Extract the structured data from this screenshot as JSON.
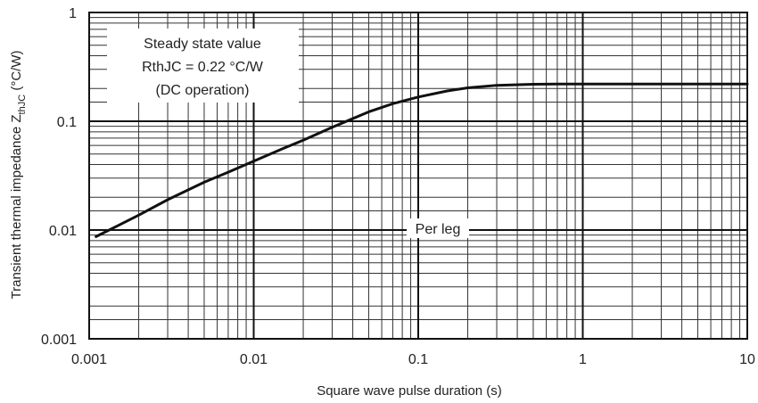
{
  "chart_data": {
    "type": "line",
    "xscale": "log",
    "yscale": "log",
    "xlim": [
      0.001,
      10
    ],
    "ylim": [
      0.001,
      1
    ],
    "grid": true,
    "xlabel": "Square wave pulse duration (s)",
    "ylabel_main": "Transient thermal impedance Z",
    "ylabel_sub": "thJC",
    "ylabel_unit": " (°C/W)",
    "x_ticks": [
      {
        "value": 0.001,
        "label": "0.001"
      },
      {
        "value": 0.01,
        "label": "0.01"
      },
      {
        "value": 0.1,
        "label": "0.1"
      },
      {
        "value": 1,
        "label": "1"
      },
      {
        "value": 10,
        "label": "10"
      }
    ],
    "y_ticks": [
      {
        "value": 0.001,
        "label": "0.001"
      },
      {
        "value": 0.01,
        "label": "0.01"
      },
      {
        "value": 0.1,
        "label": "0.1"
      },
      {
        "value": 1,
        "label": "1"
      }
    ],
    "annotations": {
      "steady_state": [
        "Steady state value",
        "RthJC = 0.22 °C/W",
        "(DC operation)"
      ],
      "per_leg": "Per leg"
    },
    "series": [
      {
        "x": [
          0.0011,
          0.0015,
          0.002,
          0.003,
          0.005,
          0.007,
          0.01,
          0.015,
          0.02,
          0.03,
          0.05,
          0.07,
          0.1,
          0.15,
          0.2,
          0.3,
          0.5,
          0.7,
          1,
          2,
          5,
          10
        ],
        "values": [
          0.0087,
          0.011,
          0.0137,
          0.019,
          0.0275,
          0.034,
          0.043,
          0.056,
          0.067,
          0.088,
          0.122,
          0.145,
          0.167,
          0.19,
          0.203,
          0.214,
          0.219,
          0.22,
          0.22,
          0.22,
          0.22,
          0.22
        ]
      }
    ]
  }
}
